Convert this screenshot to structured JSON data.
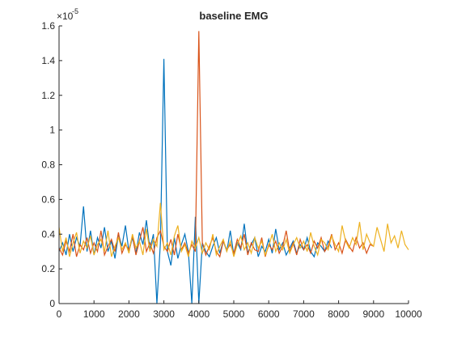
{
  "chart_data": {
    "type": "line",
    "title": "baseline EMG",
    "y_exponent": {
      "base": "×10",
      "power": "-5"
    },
    "x": [
      0,
      100,
      200,
      300,
      400,
      500,
      600,
      700,
      800,
      900,
      1000,
      1100,
      1200,
      1300,
      1400,
      1500,
      1600,
      1700,
      1800,
      1900,
      2000,
      2100,
      2200,
      2300,
      2400,
      2500,
      2600,
      2700,
      2800,
      2900,
      3000,
      3100,
      3200,
      3300,
      3400,
      3500,
      3600,
      3700,
      3800,
      3900,
      4000,
      4100,
      4200,
      4300,
      4400,
      4500,
      4600,
      4700,
      4800,
      4900,
      5000,
      5100,
      5200,
      5300,
      5400,
      5500,
      5600,
      5700,
      5800,
      5900,
      6000,
      6100,
      6200,
      6300,
      6400,
      6500,
      6600,
      6700,
      6800,
      6900,
      7000,
      7100,
      7200,
      7300,
      7400,
      7500,
      7600,
      7700,
      7800,
      7900,
      8000,
      8100,
      8200,
      8300,
      8400,
      8500,
      8600,
      8700,
      8800,
      8900,
      9000,
      9100,
      9200,
      9300,
      9400,
      9500,
      9600,
      9700,
      9800,
      9900,
      10000
    ],
    "series": [
      {
        "color": "#0072BD",
        "values": [
          0.3,
          0.35,
          0.28,
          0.4,
          0.3,
          0.38,
          0.33,
          0.56,
          0.3,
          0.42,
          0.28,
          0.38,
          0.32,
          0.44,
          0.3,
          0.36,
          0.26,
          0.4,
          0.33,
          0.45,
          0.3,
          0.38,
          0.29,
          0.41,
          0.34,
          0.48,
          0.31,
          0.4,
          0,
          0.35,
          1.41,
          0.3,
          0.22,
          0.38,
          0.26,
          0.34,
          0.4,
          0.3,
          0,
          0.5,
          0,
          0.35,
          0.3,
          0.27,
          0.33,
          0.38,
          0.29,
          0.36,
          0.3,
          0.42,
          0.28,
          0.35,
          0.31,
          0.46,
          0.29,
          0.34,
          0.38,
          0.27,
          0.33,
          0.3,
          0.37,
          0.29,
          0.43,
          0.31,
          0.35,
          0.28,
          0.32,
          0.36,
          0.29,
          0.34,
          0.31,
          0.38,
          0.3,
          0.27,
          0.35,
          0.33,
          0.3,
          0.36,
          0.32,
          null,
          null,
          null,
          null,
          null,
          null,
          null,
          null,
          null,
          null,
          null,
          null,
          null,
          null,
          null,
          null,
          null,
          null,
          null,
          null,
          null,
          null
        ]
      },
      {
        "color": "#D95319",
        "values": [
          0.32,
          0.28,
          0.36,
          0.3,
          0.4,
          0.27,
          0.34,
          0.31,
          0.38,
          0.29,
          0.35,
          0.3,
          0.42,
          0.28,
          0.33,
          0.37,
          0.3,
          0.41,
          0.29,
          0.34,
          0.31,
          0.39,
          0.28,
          0.36,
          0.44,
          0.3,
          0.35,
          0.29,
          0.38,
          0.42,
          0.33,
          0.3,
          0.37,
          0.28,
          0.4,
          0.31,
          0.35,
          0.29,
          0.34,
          0.3,
          1.57,
          0.35,
          0.28,
          0.33,
          0.38,
          0.3,
          0.27,
          0.36,
          0.31,
          0.34,
          0.29,
          0.37,
          0.32,
          0.4,
          0.28,
          0.35,
          0.31,
          0.3,
          0.38,
          0.27,
          0.34,
          0.31,
          0.36,
          0.29,
          0.33,
          0.42,
          0.3,
          0.35,
          0.28,
          0.37,
          0.31,
          0.34,
          0.29,
          0.36,
          0.32,
          0.38,
          0.3,
          0.33,
          0.4,
          0.31,
          0.35,
          0.29,
          0.37,
          0.33,
          0.3,
          0.38,
          0.32,
          0.35,
          0.29,
          0.34,
          0.33,
          null,
          null,
          null,
          null,
          null,
          null,
          null,
          null,
          null,
          null
        ]
      },
      {
        "color": "#EDB120",
        "values": [
          0.44,
          0.3,
          0.38,
          0.27,
          0.35,
          0.41,
          0.29,
          0.36,
          0.32,
          0.39,
          0.28,
          0.34,
          0.37,
          0.3,
          0.42,
          0.27,
          0.33,
          0.38,
          0.31,
          0.35,
          0.29,
          0.4,
          0.32,
          0.36,
          0.28,
          0.43,
          0.3,
          0.37,
          0.33,
          0.58,
          0.31,
          0.35,
          0.28,
          0.39,
          0.45,
          0.3,
          0.34,
          0.27,
          0.36,
          0.32,
          0.38,
          0.29,
          0.35,
          0.31,
          0.4,
          0.28,
          0.33,
          0.37,
          0.3,
          0.36,
          0.27,
          0.34,
          0.39,
          0.31,
          0.35,
          0.29,
          0.38,
          0.32,
          0.36,
          0.28,
          0.33,
          0.4,
          0.3,
          0.35,
          0.31,
          0.37,
          0.29,
          0.34,
          0.38,
          0.32,
          0.36,
          0.3,
          0.41,
          0.33,
          0.28,
          0.37,
          0.35,
          0.31,
          0.39,
          0.34,
          0.3,
          0.45,
          0.36,
          0.32,
          0.38,
          0.34,
          0.47,
          0.31,
          0.4,
          0.35,
          0.33,
          0.44,
          0.37,
          0.3,
          0.46,
          0.35,
          0.39,
          0.32,
          0.42,
          0.34,
          0.31
        ]
      }
    ],
    "xlim": [
      0,
      10000
    ],
    "xticks": [
      0,
      1000,
      2000,
      3000,
      4000,
      5000,
      6000,
      7000,
      8000,
      9000,
      10000
    ],
    "ylim": [
      0,
      1.6
    ],
    "yticks": [
      0,
      0.2,
      0.4,
      0.6,
      0.8,
      1,
      1.2,
      1.4,
      1.6
    ]
  }
}
